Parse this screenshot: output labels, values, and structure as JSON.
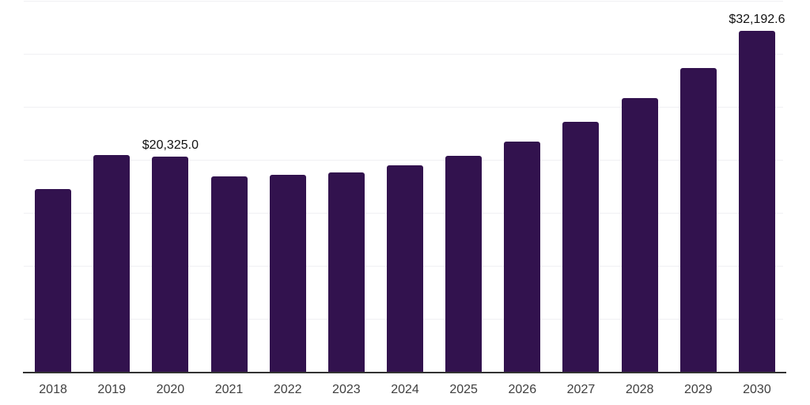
{
  "chart_data": {
    "type": "bar",
    "title": "",
    "xlabel": "",
    "ylabel": "",
    "categories": [
      "2018",
      "2019",
      "2020",
      "2021",
      "2022",
      "2023",
      "2024",
      "2025",
      "2026",
      "2027",
      "2028",
      "2029",
      "2030"
    ],
    "values": [
      17230,
      20470,
      20325.0,
      18420,
      18560,
      18810,
      19470,
      20370,
      21710,
      23570,
      25810,
      28650,
      32192.6
    ],
    "annotations": [
      {
        "category": "2020",
        "text": "$20,325.0"
      },
      {
        "category": "2030",
        "text": "$32,192.6"
      }
    ],
    "ylim": [
      0,
      35000
    ],
    "gridline_step": 5000,
    "grid": true,
    "legend": false,
    "colors": {
      "bar": "#32124e",
      "gridline": "#f0f0f3",
      "axis_line": "#333333",
      "tick_label": "#3f3f3f",
      "data_label": "#111111",
      "background": "#ffffff"
    }
  }
}
